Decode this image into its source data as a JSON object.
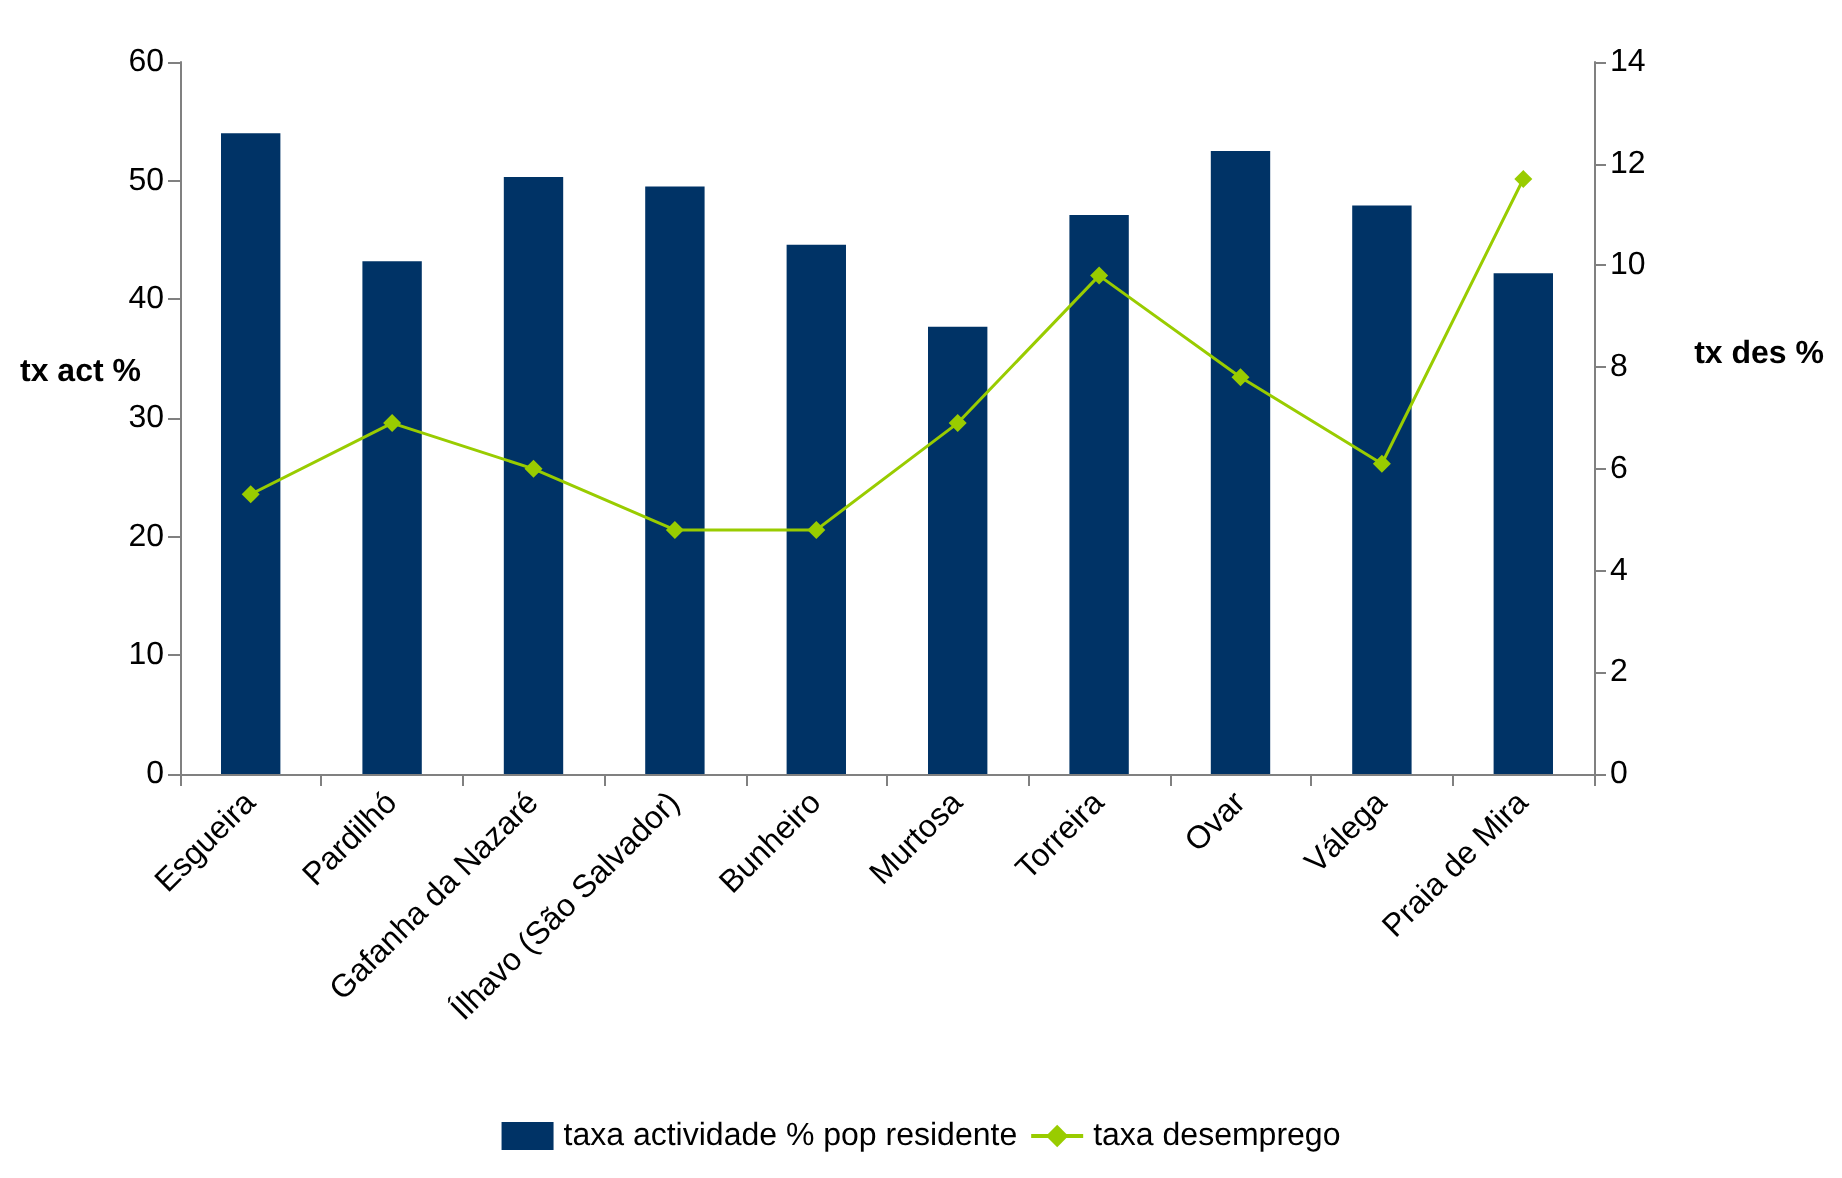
{
  "chart_data": {
    "type": "bar",
    "categories": [
      "Esgueira",
      "Pardilhó",
      "Gafanha da Nazaré",
      "Ílhavo (São Salvador)",
      "Bunheiro",
      "Murtosa",
      "Torreira",
      "Ovar",
      "Válega",
      "Praia de Mira"
    ],
    "series": [
      {
        "name": "taxa actividade % pop residente",
        "color": "#003366",
        "values": [
          54.0,
          43.2,
          50.3,
          49.5,
          44.6,
          37.7,
          47.1,
          52.5,
          47.9,
          42.2
        ]
      },
      {
        "name": "taxa desemprego",
        "type": "line",
        "axis": "y2",
        "color": "#99cc00",
        "marker": "diamond",
        "values": [
          5.5,
          6.9,
          6.0,
          4.8,
          4.8,
          6.9,
          9.8,
          7.8,
          6.1,
          11.7
        ]
      }
    ],
    "ylabel": "tx act %",
    "y2label": "tx des %",
    "ylim": [
      0,
      60
    ],
    "yticks": [
      0,
      10,
      20,
      30,
      40,
      50,
      60
    ],
    "y2lim": [
      0,
      14
    ],
    "y2ticks": [
      0,
      2,
      4,
      6,
      8,
      10,
      12,
      14
    ],
    "grid": false,
    "legend": "bottom"
  }
}
